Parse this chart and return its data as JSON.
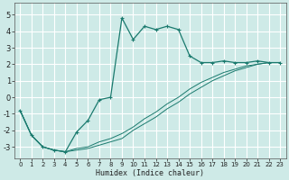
{
  "title": "",
  "xlabel": "Humidex (Indice chaleur)",
  "background_color": "#ceeae7",
  "grid_color": "#aad4d0",
  "line_color": "#1a7a6e",
  "xlim": [
    -0.5,
    23.5
  ],
  "ylim": [
    -3.7,
    5.7
  ],
  "xticks": [
    0,
    1,
    2,
    3,
    4,
    5,
    6,
    7,
    8,
    9,
    10,
    11,
    12,
    13,
    14,
    15,
    16,
    17,
    18,
    19,
    20,
    21,
    22,
    23
  ],
  "yticks": [
    -3,
    -2,
    -1,
    0,
    1,
    2,
    3,
    4,
    5
  ],
  "series1_x": [
    0,
    1,
    2,
    3,
    4,
    5,
    6,
    7,
    8,
    9,
    10,
    11,
    12,
    13,
    14,
    15,
    16,
    17,
    18,
    19,
    20,
    21,
    22,
    23
  ],
  "series1_y": [
    -0.8,
    -2.3,
    -3.0,
    -3.2,
    -3.3,
    -2.1,
    -1.4,
    -0.15,
    0.0,
    4.8,
    3.5,
    4.3,
    4.1,
    4.3,
    4.1,
    2.5,
    2.1,
    2.1,
    2.2,
    2.1,
    2.1,
    2.2,
    2.1,
    2.1
  ],
  "series2_x": [
    0,
    1,
    2,
    3,
    4,
    5,
    6,
    7,
    8,
    9,
    10,
    11,
    12,
    13,
    14,
    15,
    16,
    17,
    18,
    19,
    20,
    21,
    22,
    23
  ],
  "series2_y": [
    -0.8,
    -2.3,
    -3.0,
    -3.2,
    -3.3,
    -3.2,
    -3.1,
    -2.9,
    -2.7,
    -2.5,
    -2.0,
    -1.6,
    -1.2,
    -0.7,
    -0.3,
    0.2,
    0.6,
    1.0,
    1.3,
    1.6,
    1.8,
    2.0,
    2.1,
    2.1
  ],
  "series3_x": [
    0,
    1,
    2,
    3,
    4,
    5,
    6,
    7,
    8,
    9,
    10,
    11,
    12,
    13,
    14,
    15,
    16,
    17,
    18,
    19,
    20,
    21,
    22,
    23
  ],
  "series3_y": [
    -0.8,
    -2.3,
    -3.0,
    -3.2,
    -3.3,
    -3.1,
    -3.0,
    -2.7,
    -2.5,
    -2.2,
    -1.8,
    -1.3,
    -0.9,
    -0.4,
    0.0,
    0.5,
    0.9,
    1.2,
    1.5,
    1.7,
    1.9,
    2.0,
    2.1,
    2.1
  ]
}
